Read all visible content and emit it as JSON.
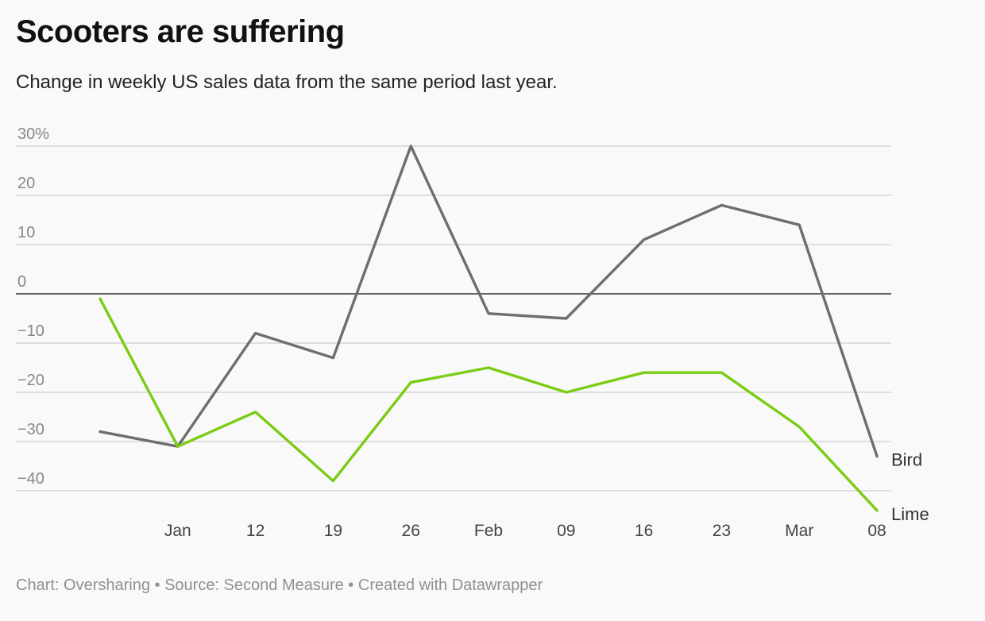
{
  "chart_data": {
    "type": "line",
    "title": "Scooters are suffering",
    "subtitle": "Change in weekly US sales data from the same period last year.",
    "xlabel": "",
    "ylabel": "",
    "x_ticks": [
      "",
      "Jan",
      "12",
      "19",
      "26",
      "Feb",
      "09",
      "16",
      "23",
      "Mar",
      "08"
    ],
    "y_ticks": [
      {
        "value": 30,
        "label": "30%"
      },
      {
        "value": 20,
        "label": "20"
      },
      {
        "value": 10,
        "label": "10"
      },
      {
        "value": 0,
        "label": "0"
      },
      {
        "value": -10,
        "label": "−10"
      },
      {
        "value": -20,
        "label": "−20"
      },
      {
        "value": -30,
        "label": "−30"
      },
      {
        "value": -40,
        "label": "−40"
      }
    ],
    "ylim": [
      -44,
      30
    ],
    "grid": true,
    "series": [
      {
        "name": "Bird",
        "color": "#6e6e6e",
        "values": [
          -28,
          -31,
          -8,
          -13,
          30,
          -4,
          -5,
          11,
          18,
          14,
          -33
        ]
      },
      {
        "name": "Lime",
        "color": "#7acc14",
        "values": [
          -1,
          -31,
          -24,
          -38,
          -18,
          -15,
          -20,
          -16,
          -16,
          -27,
          -44
        ]
      }
    ]
  },
  "footer": "Chart: Oversharing • Source: Second Measure • Created with Datawrapper"
}
